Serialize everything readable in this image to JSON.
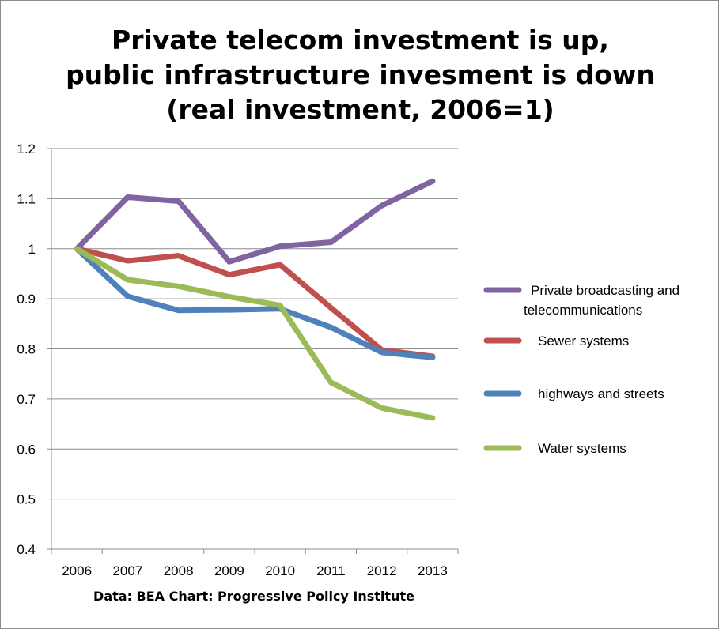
{
  "chart_data": {
    "type": "line",
    "title_lines": [
      "Private telecom investment is up,",
      "public infrastructure invesment is down",
      "(real investment, 2006=1)"
    ],
    "x": [
      "2006",
      "2007",
      "2008",
      "2009",
      "2010",
      "2011",
      "2012",
      "2013"
    ],
    "ylim": [
      0.4,
      1.2
    ],
    "yticks": [
      "0.4",
      "0.5",
      "0.6",
      "0.7",
      "0.8",
      "0.9",
      "1",
      "1.1",
      "1.2"
    ],
    "ytick_values": [
      0.4,
      0.5,
      0.6,
      0.7,
      0.8,
      0.9,
      1.0,
      1.1,
      1.2
    ],
    "grid": true,
    "legend_position": "right",
    "series": [
      {
        "name_lines": [
          "Private broadcasting and",
          "telecommunications"
        ],
        "color": "#8064a2",
        "values": [
          1.0,
          1.103,
          1.095,
          0.974,
          1.005,
          1.013,
          1.086,
          1.135
        ]
      },
      {
        "name_lines": [
          "Sewer systems"
        ],
        "color": "#c0504d",
        "values": [
          1.0,
          0.976,
          0.986,
          0.948,
          0.968,
          0.882,
          0.798,
          0.785
        ]
      },
      {
        "name_lines": [
          "highways and streets"
        ],
        "color": "#4f81bd",
        "values": [
          1.0,
          0.905,
          0.877,
          0.878,
          0.88,
          0.843,
          0.793,
          0.783
        ]
      },
      {
        "name_lines": [
          "Water systems"
        ],
        "color": "#9bbb59",
        "values": [
          1.0,
          0.938,
          0.925,
          0.904,
          0.887,
          0.733,
          0.682,
          0.662
        ]
      }
    ],
    "caption": "Data: BEA   Chart: Progressive Policy Institute"
  }
}
